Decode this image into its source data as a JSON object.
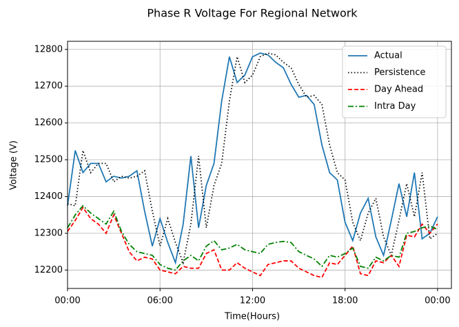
{
  "chart_data": {
    "type": "line",
    "title": "Phase R Voltage For Regional Network",
    "xlabel": "Time(Hours)",
    "ylabel": "Voltage (V)",
    "x": [
      0,
      0.5,
      1,
      1.5,
      2,
      2.5,
      3,
      3.5,
      4,
      4.5,
      5,
      5.5,
      6,
      6.5,
      7,
      7.5,
      8,
      8.5,
      9,
      9.5,
      10,
      10.5,
      11,
      11.5,
      12,
      12.5,
      13,
      13.5,
      14,
      14.5,
      15,
      15.5,
      16,
      16.5,
      17,
      17.5,
      18,
      18.5,
      19,
      19.5,
      20,
      20.5,
      21,
      21.5,
      22,
      22.5,
      23,
      23.5,
      24
    ],
    "series": [
      {
        "name": "Actual",
        "color": "#1f77b4",
        "dash": "solid",
        "values": [
          12375,
          12525,
          12465,
          12490,
          12490,
          12440,
          12455,
          12450,
          12455,
          12470,
          12360,
          12265,
          12340,
          12275,
          12220,
          12325,
          12510,
          12315,
          12430,
          12490,
          12660,
          12780,
          12710,
          12730,
          12780,
          12790,
          12785,
          12765,
          12750,
          12705,
          12670,
          12675,
          12650,
          12540,
          12465,
          12445,
          12330,
          12280,
          12355,
          12395,
          12290,
          12240,
          12335,
          12435,
          12345,
          12465,
          12285,
          12300,
          12345
        ]
      },
      {
        "name": "Persistence",
        "color": "#000000",
        "dash": "dotted",
        "values": [
          12380,
          12375,
          12525,
          12465,
          12490,
          12490,
          12440,
          12455,
          12450,
          12455,
          12470,
          12360,
          12265,
          12340,
          12275,
          12220,
          12325,
          12510,
          12315,
          12430,
          12490,
          12660,
          12780,
          12710,
          12730,
          12780,
          12790,
          12785,
          12765,
          12750,
          12705,
          12670,
          12675,
          12650,
          12540,
          12465,
          12445,
          12330,
          12280,
          12355,
          12395,
          12290,
          12240,
          12335,
          12435,
          12345,
          12465,
          12285,
          12300
        ]
      },
      {
        "name": "Day Ahead",
        "color": "#ff0000",
        "dash": "dashed",
        "values": [
          12305,
          12335,
          12370,
          12340,
          12325,
          12300,
          12350,
          12300,
          12250,
          12225,
          12235,
          12230,
          12200,
          12195,
          12190,
          12210,
          12205,
          12205,
          12245,
          12255,
          12200,
          12200,
          12220,
          12205,
          12195,
          12185,
          12215,
          12220,
          12225,
          12225,
          12205,
          12195,
          12185,
          12180,
          12220,
          12215,
          12240,
          12265,
          12190,
          12185,
          12225,
          12220,
          12240,
          12210,
          12295,
          12290,
          12325,
          12300,
          12325
        ]
      },
      {
        "name": "Intra Day",
        "color": "#008000",
        "dash": "dashdot",
        "values": [
          12315,
          12350,
          12375,
          12355,
          12340,
          12325,
          12360,
          12305,
          12270,
          12250,
          12245,
          12240,
          12215,
          12205,
          12200,
          12225,
          12240,
          12225,
          12265,
          12280,
          12255,
          12260,
          12270,
          12255,
          12250,
          12245,
          12270,
          12275,
          12278,
          12275,
          12250,
          12240,
          12230,
          12210,
          12240,
          12235,
          12245,
          12260,
          12210,
          12205,
          12235,
          12225,
          12240,
          12235,
          12300,
          12305,
          12315,
          12320,
          12310
        ]
      }
    ],
    "xlim": [
      0,
      24.9
    ],
    "xticks": [
      {
        "value": 0,
        "label": "00:00"
      },
      {
        "value": 6,
        "label": "06:00"
      },
      {
        "value": 12,
        "label": "12:00"
      },
      {
        "value": 18,
        "label": "18:00"
      },
      {
        "value": 24,
        "label": "00:00"
      }
    ],
    "ylim": [
      12150,
      12822
    ],
    "yticks": [
      12200,
      12300,
      12400,
      12500,
      12600,
      12700,
      12800
    ],
    "grid": true,
    "legend": "upper right"
  }
}
